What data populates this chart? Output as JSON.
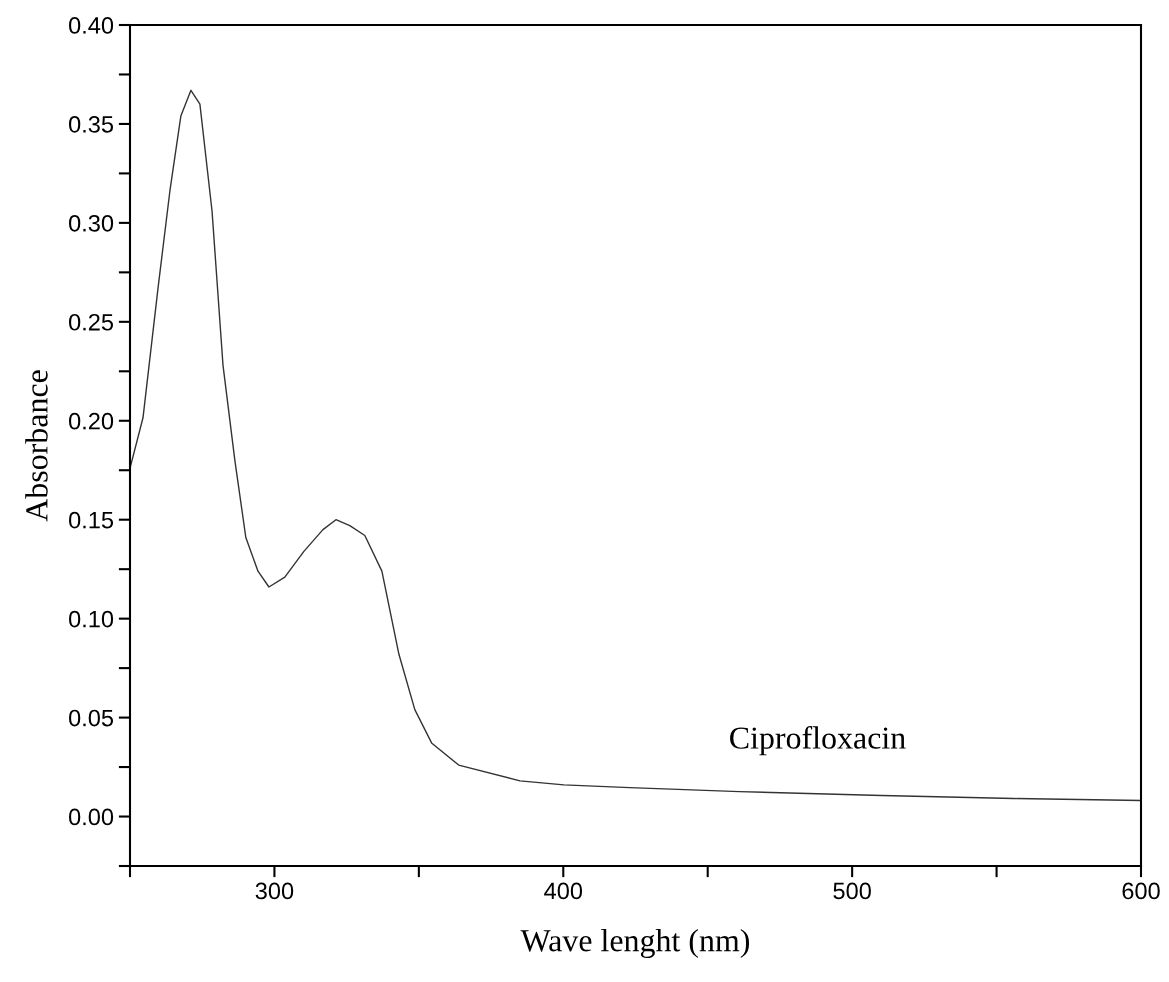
{
  "chart_data": {
    "type": "line",
    "xlabel": "Wave lenght (nm)",
    "ylabel": "Absorbance",
    "x": [
      250,
      254.5,
      259.7,
      263.8,
      267.6,
      271.1,
      274.2,
      278.4,
      282.2,
      286.3,
      290.1,
      294.3,
      298.1,
      303.6,
      310.2,
      316.8,
      321.3,
      326.1,
      331.3,
      337.2,
      343.1,
      348.6,
      354.5,
      363.8,
      385,
      400.2,
      423,
      461,
      510.2,
      555.9,
      600
    ],
    "series": [
      {
        "color": "#333333",
        "values": [
          0.176,
          0.2015,
          0.267,
          0.316,
          0.354,
          0.367,
          0.36,
          0.306,
          0.228,
          0.18,
          0.141,
          0.124,
          0.116,
          0.121,
          0.134,
          0.145,
          0.15,
          0.147,
          0.142,
          0.124,
          0.082,
          0.054,
          0.037,
          0.026,
          0.018,
          0.016,
          0.0146,
          0.0126,
          0.0106,
          0.0091,
          0.0081
        ]
      }
    ],
    "xlim": [
      250,
      600
    ],
    "xticks": [
      {
        "value": 250,
        "label": null
      },
      300,
      {
        "value": 350,
        "label": null
      },
      400,
      {
        "value": 450,
        "label": null
      },
      500,
      {
        "value": 550,
        "label": null
      },
      600
    ],
    "ylim": [
      -0.025,
      0.4
    ],
    "yticks": [
      {
        "value": -0.025,
        "label": null
      },
      {
        "value": 0,
        "label": "0.00"
      },
      {
        "value": 0.025,
        "label": null
      },
      {
        "value": 0.05,
        "label": "0.05"
      },
      {
        "value": 0.075,
        "label": null
      },
      {
        "value": 0.1,
        "label": "0.10"
      },
      {
        "value": 0.125,
        "label": null
      },
      {
        "value": 0.15,
        "label": "0.15"
      },
      {
        "value": 0.175,
        "label": null
      },
      {
        "value": 0.2,
        "label": "0.20"
      },
      {
        "value": 0.225,
        "label": null
      },
      {
        "value": 0.25,
        "label": "0.25"
      },
      {
        "value": 0.275,
        "label": null
      },
      {
        "value": 0.3,
        "label": "0.30"
      },
      {
        "value": 0.325,
        "label": null
      },
      {
        "value": 0.35,
        "label": "0.35"
      },
      {
        "value": 0.375,
        "label": null
      },
      {
        "value": 0.4,
        "label": "0.40"
      }
    ],
    "annotations": [
      "Ciprofloxacin"
    ],
    "grid": false,
    "legend": false,
    "marker": "none",
    "line_style": "solid"
  }
}
